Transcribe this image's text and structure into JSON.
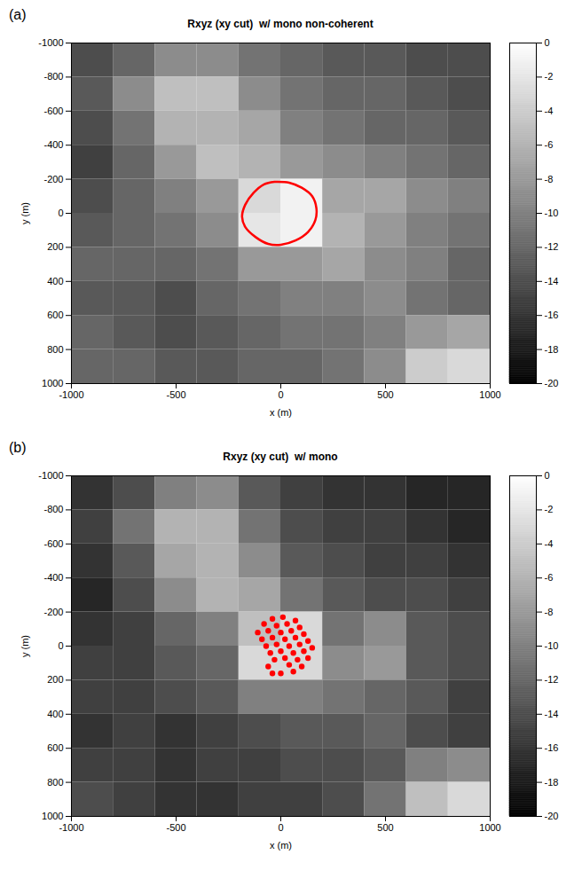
{
  "chart_data": [
    {
      "type": "heatmap",
      "panel_label": "(a)",
      "title": "Rxyz (xy cut)  w/ mono non-coherent",
      "xlabel": "x (m)",
      "ylabel": "y (m)",
      "xlim": [
        -1000,
        1000
      ],
      "xticks": [
        -1000,
        -500,
        0,
        500,
        1000
      ],
      "ylim": [
        -1000,
        1000
      ],
      "yticks": [
        -1000,
        -800,
        -600,
        -400,
        -200,
        0,
        200,
        400,
        600,
        800,
        1000
      ],
      "cells": {
        "x": [
          -900,
          -700,
          -500,
          -300,
          -100,
          100,
          300,
          500,
          700,
          900
        ],
        "y": [
          -900,
          -700,
          -500,
          -300,
          -100,
          100,
          300,
          500,
          700,
          900
        ],
        "values": [
          [
            -14,
            -12,
            -9,
            -9,
            -11,
            -12,
            -13,
            -13,
            -14,
            -14
          ],
          [
            -13,
            -9,
            -5,
            -5,
            -9,
            -11,
            -12,
            -12,
            -13,
            -14
          ],
          [
            -14,
            -11,
            -6,
            -6,
            -7,
            -10,
            -11,
            -12,
            -12,
            -13
          ],
          [
            -15,
            -12,
            -8,
            -5,
            -6,
            -8,
            -9,
            -10,
            -11,
            -12
          ],
          [
            -14,
            -12,
            -10,
            -8,
            -3,
            -1,
            -7,
            -7,
            -9,
            -10
          ],
          [
            -13,
            -12,
            -11,
            -9,
            -2,
            -1,
            -6,
            -8,
            -10,
            -11
          ],
          [
            -12,
            -12,
            -12,
            -11,
            -8,
            -8,
            -7,
            -9,
            -10,
            -12
          ],
          [
            -13,
            -13,
            -14,
            -12,
            -11,
            -10,
            -10,
            -9,
            -11,
            -12
          ],
          [
            -12,
            -13,
            -14,
            -13,
            -12,
            -11,
            -11,
            -10,
            -8,
            -7
          ],
          [
            -12,
            -12,
            -13,
            -13,
            -12,
            -12,
            -11,
            -9,
            -4,
            -3
          ]
        ]
      },
      "colorbar": {
        "range": [
          -20,
          0
        ],
        "ticks": [
          0,
          -2,
          -4,
          -6,
          -8,
          -10,
          -12,
          -14,
          -16,
          -18,
          -20
        ]
      },
      "contour": {
        "color": "#ff0000",
        "line_style": "solid",
        "x": [
          -30,
          40,
          100,
          150,
          170,
          165,
          130,
          70,
          0,
          -60,
          -120,
          -170,
          -185,
          -170,
          -130,
          -80,
          -30
        ],
        "y": [
          -185,
          -180,
          -150,
          -100,
          -30,
          40,
          110,
          160,
          185,
          180,
          140,
          80,
          20,
          -50,
          -120,
          -170,
          -185
        ]
      }
    },
    {
      "type": "heatmap",
      "panel_label": "(b)",
      "title": "Rxyz (xy cut)  w/ mono",
      "xlabel": "x (m)",
      "ylabel": "y (m)",
      "xlim": [
        -1000,
        1000
      ],
      "xticks": [
        -1000,
        -500,
        0,
        500,
        1000
      ],
      "ylim": [
        -1000,
        1000
      ],
      "yticks": [
        -1000,
        -800,
        -600,
        -400,
        -200,
        0,
        200,
        400,
        600,
        800,
        1000
      ],
      "cells": {
        "x": [
          -900,
          -700,
          -500,
          -300,
          -100,
          100,
          300,
          500,
          700,
          900
        ],
        "y": [
          -900,
          -700,
          -500,
          -300,
          -100,
          100,
          300,
          500,
          700,
          900
        ],
        "values": [
          [
            -16,
            -14,
            -10,
            -9,
            -13,
            -15,
            -16,
            -16,
            -17,
            -17
          ],
          [
            -15,
            -11,
            -6,
            -6,
            -11,
            -14,
            -15,
            -15,
            -16,
            -17
          ],
          [
            -16,
            -13,
            -7,
            -6,
            -9,
            -13,
            -14,
            -15,
            -15,
            -16
          ],
          [
            -17,
            -14,
            -9,
            -6,
            -7,
            -11,
            -13,
            -14,
            -14,
            -15
          ],
          [
            -16,
            -15,
            -12,
            -10,
            -5,
            -3,
            -11,
            -9,
            -13,
            -14
          ],
          [
            -15,
            -15,
            -13,
            -12,
            -3,
            -3,
            -9,
            -8,
            -13,
            -14
          ],
          [
            -15,
            -15,
            -14,
            -13,
            -10,
            -10,
            -11,
            -12,
            -13,
            -15
          ],
          [
            -16,
            -15,
            -16,
            -15,
            -14,
            -13,
            -13,
            -12,
            -14,
            -15
          ],
          [
            -15,
            -15,
            -16,
            -15,
            -15,
            -14,
            -14,
            -13,
            -10,
            -9
          ],
          [
            -14,
            -15,
            -16,
            -16,
            -15,
            -15,
            -14,
            -11,
            -5,
            -3
          ]
        ]
      },
      "colorbar": {
        "range": [
          -20,
          0
        ],
        "ticks": [
          0,
          -2,
          -4,
          -6,
          -8,
          -10,
          -12,
          -14,
          -16,
          -18,
          -20
        ]
      },
      "points": {
        "color": "#ff0000",
        "marker": "circle",
        "x": [
          -110,
          -90,
          -70,
          -50,
          -30,
          -80,
          -60,
          -40,
          -20,
          0,
          20,
          40,
          -40,
          -20,
          0,
          20,
          40,
          60,
          80,
          100,
          10,
          30,
          50,
          70,
          90,
          110,
          130,
          70,
          90,
          110,
          130,
          150,
          -60,
          -40,
          0,
          60
        ],
        "y": [
          -80,
          -40,
          0,
          40,
          80,
          -130,
          -90,
          -50,
          -10,
          30,
          70,
          110,
          -160,
          -120,
          -80,
          -40,
          0,
          40,
          80,
          120,
          -170,
          -130,
          -90,
          -50,
          -10,
          30,
          70,
          -150,
          -110,
          -70,
          -30,
          10,
          120,
          160,
          160,
          150
        ]
      }
    }
  ]
}
